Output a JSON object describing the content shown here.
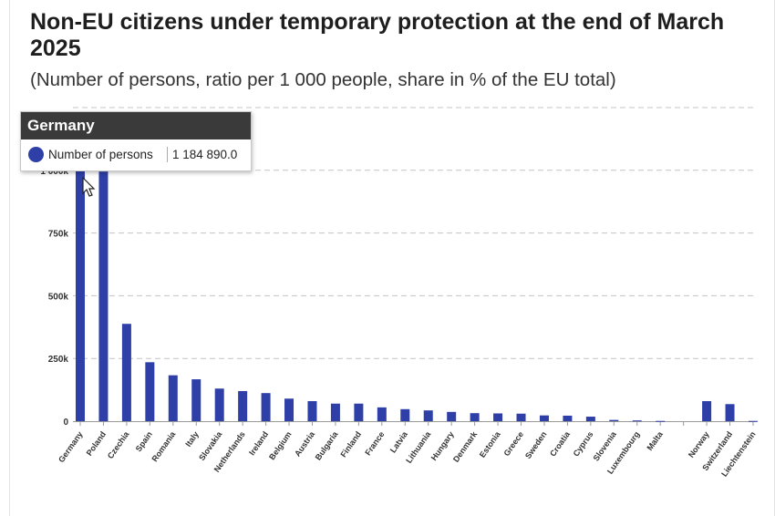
{
  "title": "Non-EU citizens under temporary protection at the end of March 2025",
  "subtitle": "(Number of persons, ratio per 1 000 people, share in % of the EU total)",
  "tooltip": {
    "title": "Germany",
    "series_label": "Number of persons",
    "value": "1 184 890.0",
    "marker_color": "#2e3fa8"
  },
  "chart_data": {
    "type": "bar",
    "categories": [
      "Germany",
      "Poland",
      "Czechia",
      "Spain",
      "Romania",
      "Italy",
      "Slovakia",
      "Netherlands",
      "Ireland",
      "Belgium",
      "Austria",
      "Bulgaria",
      "Finland",
      "France",
      "Latvia",
      "Lithuania",
      "Hungary",
      "Denmark",
      "Estonia",
      "Greece",
      "Sweden",
      "Croatia",
      "Cyprus",
      "Slovenia",
      "Luxembourg",
      "Malta",
      "",
      "Norway",
      "Switzerland",
      "Liechtenstein"
    ],
    "values": [
      1184890,
      995000,
      388000,
      235000,
      183000,
      167000,
      130000,
      120000,
      112000,
      90000,
      80000,
      70000,
      70000,
      55000,
      48000,
      43000,
      37000,
      32000,
      31000,
      30000,
      23000,
      22000,
      18000,
      5000,
      3000,
      1000,
      null,
      80000,
      68000,
      1000
    ],
    "y_ticks": [
      0,
      250000,
      500000,
      750000,
      1000000
    ],
    "y_tick_labels": [
      "0",
      "250k",
      "500k",
      "750k",
      "1 000k"
    ],
    "ylim": [
      0,
      1250000
    ],
    "grid": true,
    "bar_color": "#2e3fa8"
  }
}
